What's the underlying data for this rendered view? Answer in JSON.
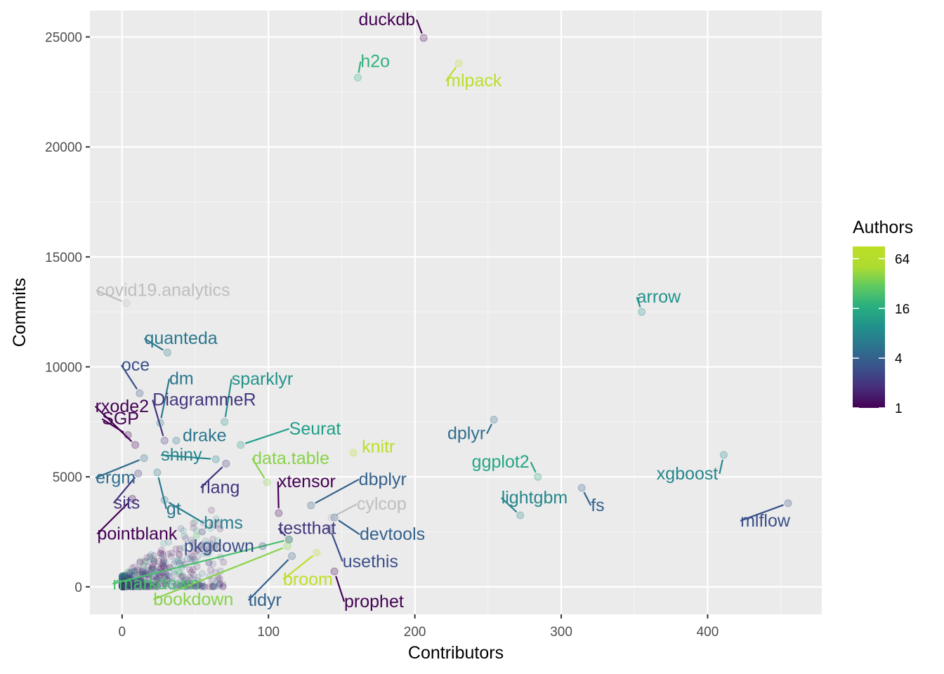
{
  "chart_data": {
    "type": "scatter",
    "xlabel": "Contributors",
    "ylabel": "Commits",
    "xlim": [
      -22,
      478
    ],
    "ylim": [
      -1250,
      26200
    ],
    "x_ticks": [
      0,
      100,
      200,
      300,
      400
    ],
    "y_ticks": [
      0,
      5000,
      10000,
      15000,
      20000,
      25000
    ],
    "x_tick_labels": [
      "0",
      "100",
      "200",
      "300",
      "400"
    ],
    "y_tick_labels": [
      "0",
      "5000",
      "10000",
      "15000",
      "20000",
      "25000"
    ],
    "grid": true,
    "legend": {
      "title": "Authors",
      "position": "right",
      "scale": "log",
      "range": [
        1,
        90
      ],
      "ticks": [
        1,
        4,
        16,
        64
      ],
      "tick_labels": [
        "1",
        "4",
        "16",
        "64"
      ],
      "na_color": "#bebebe"
    },
    "labeled_points": [
      {
        "name": "duckdb",
        "x": 206,
        "y": 24950,
        "authors": 1
      },
      {
        "name": "h2o",
        "x": 161,
        "y": 23150,
        "authors": 18
      },
      {
        "name": "mlpack",
        "x": 230,
        "y": 23800,
        "authors": 64
      },
      {
        "name": "covid19.analytics",
        "x": 3,
        "y": 12900,
        "authors": null
      },
      {
        "name": "arrow",
        "x": 355,
        "y": 12500,
        "authors": 10
      },
      {
        "name": "quanteda",
        "x": 31,
        "y": 10650,
        "authors": 6
      },
      {
        "name": "oce",
        "x": 12,
        "y": 8800,
        "authors": 3
      },
      {
        "name": "dm",
        "x": 26,
        "y": 7450,
        "authors": 6
      },
      {
        "name": "sparklyr",
        "x": 70,
        "y": 7500,
        "authors": 10
      },
      {
        "name": "rxode2",
        "x": 9,
        "y": 6450,
        "authors": 1
      },
      {
        "name": "DiagrammeR",
        "x": 29,
        "y": 6650,
        "authors": 2
      },
      {
        "name": "SGP",
        "x": 4,
        "y": 6900,
        "authors": 1
      },
      {
        "name": "drake",
        "x": 37,
        "y": 6650,
        "authors": 6
      },
      {
        "name": "Seurat",
        "x": 81,
        "y": 6450,
        "authors": 12
      },
      {
        "name": "knitr",
        "x": 158,
        "y": 6100,
        "authors": 64
      },
      {
        "name": "dplyr",
        "x": 254,
        "y": 7600,
        "authors": 5
      },
      {
        "name": "ergm",
        "x": 15,
        "y": 5850,
        "authors": 5
      },
      {
        "name": "shiny",
        "x": 64,
        "y": 5800,
        "authors": 8
      },
      {
        "name": "data.table",
        "x": 99,
        "y": 4750,
        "authors": 40
      },
      {
        "name": "ggplot2",
        "x": 284,
        "y": 5000,
        "authors": 14
      },
      {
        "name": "xgboost",
        "x": 411,
        "y": 6000,
        "authors": 8
      },
      {
        "name": "rlang",
        "x": 71,
        "y": 5600,
        "authors": 2
      },
      {
        "name": "dbplyr",
        "x": 129,
        "y": 3700,
        "authors": 4
      },
      {
        "name": "xtensor",
        "x": 107,
        "y": 3350,
        "authors": 1
      },
      {
        "name": "sits",
        "x": 11,
        "y": 5150,
        "authors": 2
      },
      {
        "name": "gt",
        "x": 24,
        "y": 5200,
        "authors": 6
      },
      {
        "name": "lightgbm",
        "x": 272,
        "y": 3250,
        "authors": 8
      },
      {
        "name": "fs",
        "x": 314,
        "y": 4500,
        "authors": 4
      },
      {
        "name": "mlflow",
        "x": 455,
        "y": 3800,
        "authors": 3
      },
      {
        "name": "cylcop",
        "x": 143,
        "y": 3150,
        "authors": null
      },
      {
        "name": "brms",
        "x": 29,
        "y": 3950,
        "authors": 7
      },
      {
        "name": "pointblank",
        "x": 7,
        "y": 4000,
        "authors": 1
      },
      {
        "name": "devtools",
        "x": 145,
        "y": 3150,
        "authors": 4
      },
      {
        "name": "testthat",
        "x": 114,
        "y": 2150,
        "authors": 2
      },
      {
        "name": "pkgdown",
        "x": 96,
        "y": 1850,
        "authors": 3
      },
      {
        "name": "usethis",
        "x": 142,
        "y": 2650,
        "authors": 3
      },
      {
        "name": "rmarkdown",
        "x": 114,
        "y": 2150,
        "authors": 24
      },
      {
        "name": "broom",
        "x": 133,
        "y": 1550,
        "authors": 70
      },
      {
        "name": "bookdown",
        "x": 113,
        "y": 1850,
        "authors": 40
      },
      {
        "name": "tidyr",
        "x": 116,
        "y": 1400,
        "authors": 4
      },
      {
        "name": "prophet",
        "x": 145,
        "y": 700,
        "authors": 1
      }
    ]
  }
}
